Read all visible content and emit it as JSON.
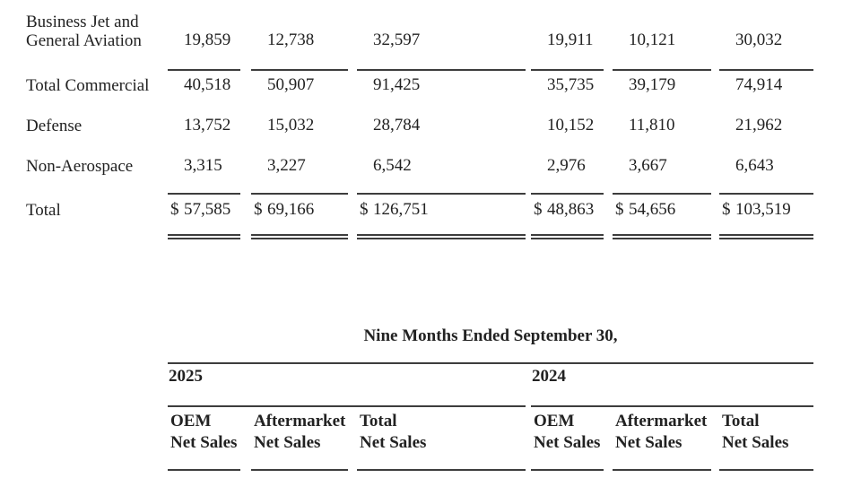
{
  "colors": {
    "background": "#ffffff",
    "text": "#222222",
    "rule": "#3d3d3d"
  },
  "currency_symbol": "$",
  "top_table": {
    "rows": [
      {
        "label_lines": [
          "Business Jet and",
          "General Aviation"
        ],
        "values": [
          "19,859",
          "12,738",
          "32,597",
          "19,911",
          "10,121",
          "30,032"
        ],
        "dollar": false
      },
      {
        "label_lines": [
          "Total Commercial"
        ],
        "values": [
          "40,518",
          "50,907",
          "91,425",
          "35,735",
          "39,179",
          "74,914"
        ],
        "dollar": false
      },
      {
        "label_lines": [
          "Defense"
        ],
        "values": [
          "13,752",
          "15,032",
          "28,784",
          "10,152",
          "11,810",
          "21,962"
        ],
        "dollar": false
      },
      {
        "label_lines": [
          "Non-Aerospace"
        ],
        "values": [
          "3,315",
          "3,227",
          "6,542",
          "2,976",
          "3,667",
          "6,643"
        ],
        "dollar": false
      },
      {
        "label_lines": [
          "Total"
        ],
        "values": [
          "57,585",
          "69,166",
          "126,751",
          "48,863",
          "54,656",
          "103,519"
        ],
        "dollar": true
      }
    ]
  },
  "bottom_table": {
    "title": "Nine Months Ended September 30,",
    "groups": [
      {
        "year": "2025",
        "columns": [
          {
            "line1": "OEM",
            "line2": "Net Sales"
          },
          {
            "line1": "Aftermarket",
            "line2": "Net Sales"
          },
          {
            "line1": "Total",
            "line2": "Net Sales"
          }
        ]
      },
      {
        "year": "2024",
        "columns": [
          {
            "line1": "OEM",
            "line2": "Net Sales"
          },
          {
            "line1": "Aftermarket",
            "line2": "Net Sales"
          },
          {
            "line1": "Total",
            "line2": "Net Sales"
          }
        ]
      }
    ]
  }
}
